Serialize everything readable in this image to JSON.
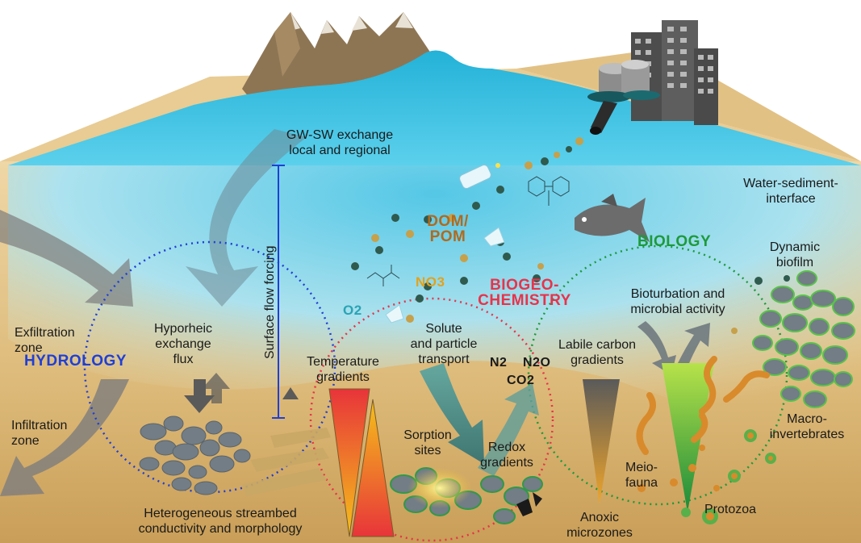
{
  "colors": {
    "hydrology": "#1f3fd6",
    "biogeochemistry": "#e8334a",
    "biology": "#1d9a3a",
    "dom_pom": "#b06a1e",
    "oxygen": "#2aa3b5",
    "nitrate": "#e3a21a"
  },
  "icons": [
    "mountain-icon",
    "city-icon",
    "wastewater-pipe-icon",
    "fish-icon",
    "plastic-bottle-icon",
    "molecule-icon",
    "worm-icon",
    "protozoa-icon",
    "biofilm-icon"
  ],
  "labels": {
    "gw_sw": "GW-SW exchange\nlocal and regional",
    "water_sediment": "Water-sediment-\ninterface",
    "surface_flow": "Surface flow forcing",
    "dom_pom": "DOM/\nPOM",
    "no3": "NO3",
    "o2": "O2",
    "biogeochemistry": "BIOGEO-\nCHEMISTRY",
    "biology": "BIOLOGY",
    "dynamic_biofilm": "Dynamic\nbiofilm",
    "bioturbation": "Bioturbation and\nmicrobial activity",
    "exfiltration": "Exfiltration\nzone",
    "hydrology": "HYDROLOGY",
    "hyporheic": "Hyporheic\nexchange\nflux",
    "solute": "Solute\nand particle\ntransport",
    "labile_carbon": "Labile carbon\ngradients",
    "n2": "N2",
    "n2o": "N2O",
    "co2": "CO2",
    "temperature": "Temperature\ngradients",
    "infiltration": "Infiltration\nzone",
    "sorption": "Sorption\nsites",
    "redox": "Redox\ngradients",
    "macroinvertebrates": "Macro-\ninvertebrates",
    "meiofauna": "Meio-\nfauna",
    "heterogeneous": "Heterogeneous streambed\nconductivity and morphology",
    "anoxic": "Anoxic\nmicrozones",
    "protozoa": "Protozoa"
  }
}
